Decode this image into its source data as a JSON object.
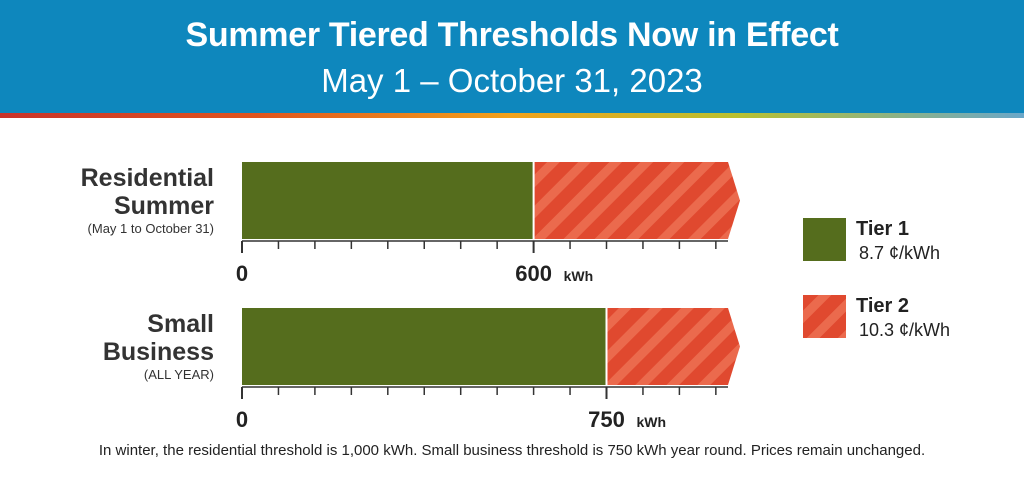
{
  "header": {
    "title": "Summer Tiered Thresholds Now in Effect",
    "subtitle": "May 1 – October 31, 2023"
  },
  "footnote": "In winter, the residential threshold is 1,000 kWh. Small business threshold is 750 kWh year round. Prices remain unchanged.",
  "colors": {
    "header_bg": "#0e87bd",
    "tier1": "#556d1d",
    "tier2": "#e0492f",
    "tier2_stripe": "#eb6a4d"
  },
  "chart_data": {
    "type": "bar",
    "orientation": "horizontal",
    "stacked": true,
    "unit": "kWh",
    "axis_max": 1000,
    "rows": [
      {
        "label_lines": [
          "Residential",
          "Summer"
        ],
        "note": "(May 1 to October 31)",
        "threshold": 600,
        "threshold_label": "600",
        "zero_label": "0",
        "tick_step": 75
      },
      {
        "label_lines": [
          "Small",
          "Business"
        ],
        "note": "(ALL YEAR)",
        "threshold": 750,
        "threshold_label": "750",
        "zero_label": "0",
        "tick_step": 75
      }
    ],
    "legend": [
      {
        "name": "Tier 1",
        "price": "8.7 ¢/kWh",
        "pattern": "solid"
      },
      {
        "name": "Tier 2",
        "price": "10.3 ¢/kWh",
        "pattern": "striped"
      }
    ]
  }
}
